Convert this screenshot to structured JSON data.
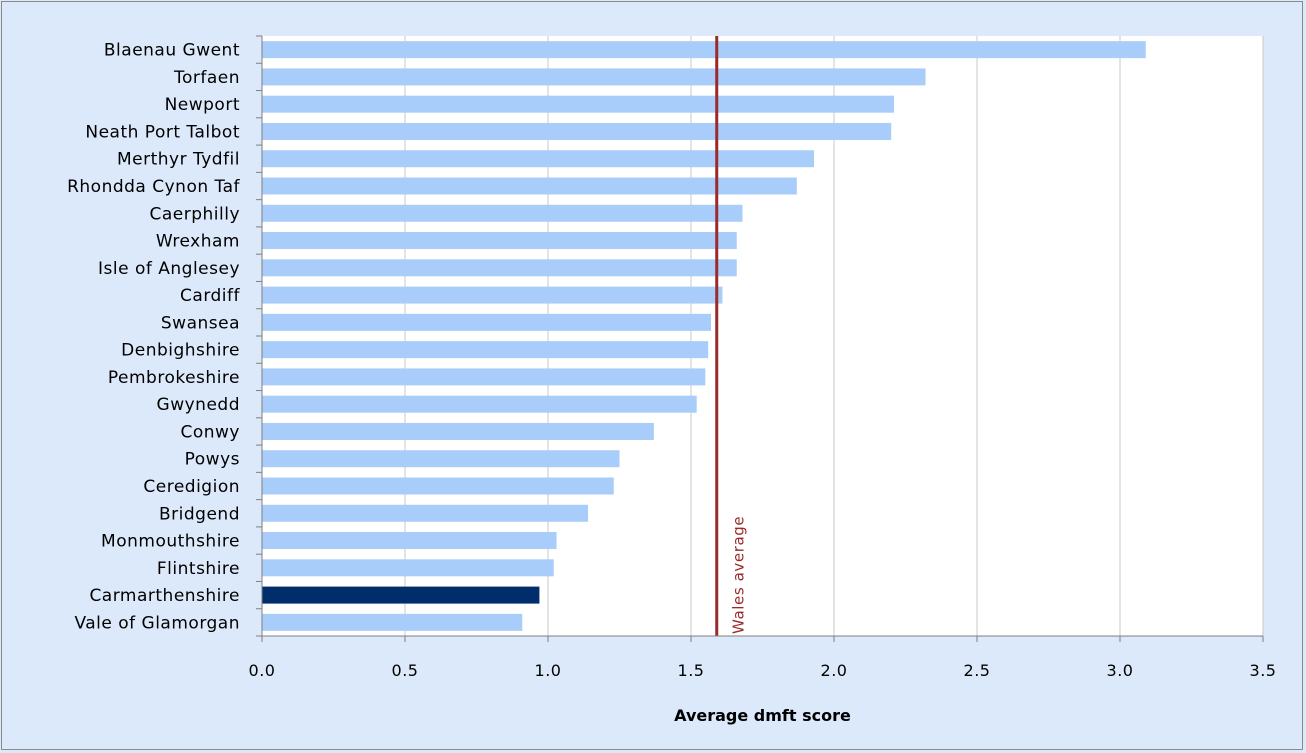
{
  "chart_data": {
    "type": "bar",
    "orientation": "horizontal",
    "title": "",
    "xlabel": "Average dmft score",
    "ylabel": "",
    "xlim": [
      0,
      3.5
    ],
    "x_ticks": [
      "0.0",
      "0.5",
      "1.0",
      "1.5",
      "2.0",
      "2.5",
      "3.0",
      "3.5"
    ],
    "grid": "vertical",
    "categories": [
      "Blaenau Gwent",
      "Torfaen",
      "Newport",
      "Neath Port Talbot",
      "Merthyr Tydfil",
      "Rhondda Cynon Taf",
      "Caerphilly",
      "Wrexham",
      "Isle of Anglesey",
      "Cardiff",
      "Swansea",
      "Denbighshire",
      "Pembrokeshire",
      "Gwynedd",
      "Conwy",
      "Powys",
      "Ceredigion",
      "Bridgend",
      "Monmouthshire",
      "Flintshire",
      "Carmarthenshire",
      "Vale of Glamorgan"
    ],
    "values": [
      3.09,
      2.32,
      2.21,
      2.2,
      1.93,
      1.87,
      1.68,
      1.66,
      1.66,
      1.61,
      1.57,
      1.56,
      1.55,
      1.52,
      1.37,
      1.25,
      1.23,
      1.14,
      1.03,
      1.02,
      0.97,
      0.91
    ],
    "highlight": "Carmarthenshire",
    "reference_line": {
      "label": "Wales average",
      "value": 1.59
    },
    "colors": {
      "bar": "#a9cdfa",
      "bar_highlight": "#002e6b",
      "reference_line": "#9b2a2a",
      "grid": "#c8c8c8",
      "background": "#dce9fa",
      "plot_background": "#ffffff"
    }
  }
}
